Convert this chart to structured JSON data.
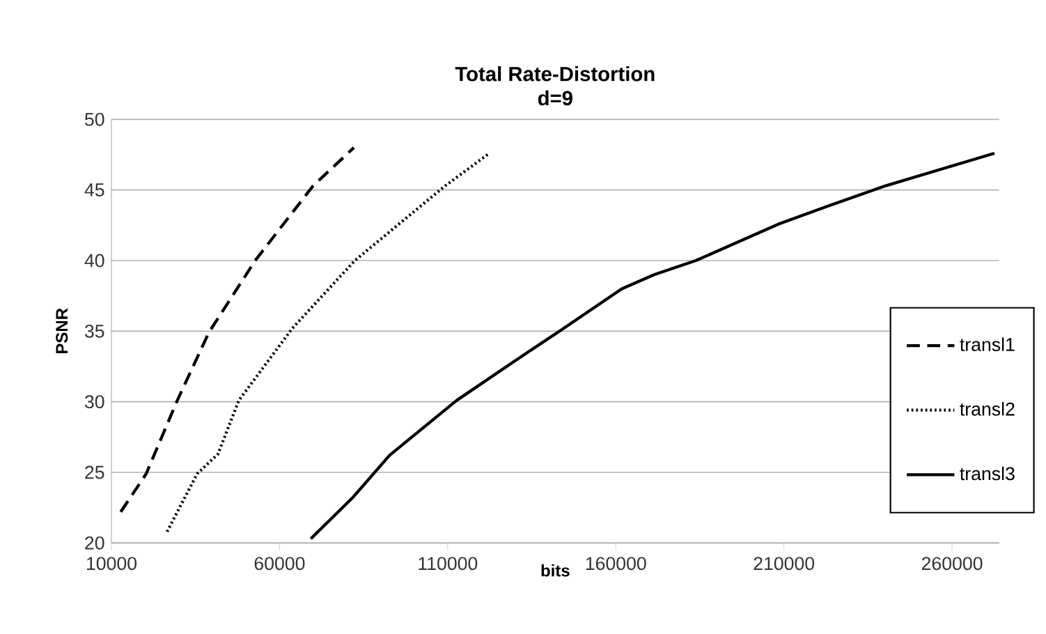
{
  "chart_data": {
    "type": "line",
    "title": "Total Rate-Distortion",
    "subtitle": "d=9",
    "xlabel": "bits",
    "ylabel": "PSNR",
    "xlim": [
      10000,
      274000
    ],
    "ylim": [
      20,
      50
    ],
    "xticks": [
      10000,
      60000,
      110000,
      160000,
      210000,
      260000
    ],
    "yticks": [
      20,
      25,
      30,
      35,
      40,
      45,
      50
    ],
    "grid": "y",
    "legend": "right",
    "series": [
      {
        "name": "transl1",
        "color": "#000000",
        "line_style": "dashed",
        "x": [
          12760,
          20340,
          29600,
          38960,
          52750,
          70000,
          82100
        ],
        "values": [
          22.2,
          24.9,
          30.1,
          34.9,
          40,
          45.3,
          48
        ]
      },
      {
        "name": "transl2",
        "color": "#000000",
        "line_style": "dotted",
        "x": [
          26550,
          35500,
          41700,
          47900,
          63800,
          82400,
          109300,
          122400
        ],
        "values": [
          20.8,
          24.9,
          26.3,
          30.1,
          35.2,
          40,
          45.3,
          47.6
        ]
      },
      {
        "name": "transl3",
        "color": "#000000",
        "line_style": "solid",
        "x": [
          69300,
          81700,
          92700,
          112700,
          130000,
          143900,
          161800,
          171400,
          183800,
          208600,
          222400,
          240300,
          272600
        ],
        "values": [
          20.3,
          23.2,
          26.2,
          30.1,
          32.9,
          35.1,
          38.0,
          39.0,
          40,
          42.6,
          43.8,
          45.3,
          47.6
        ]
      }
    ]
  }
}
